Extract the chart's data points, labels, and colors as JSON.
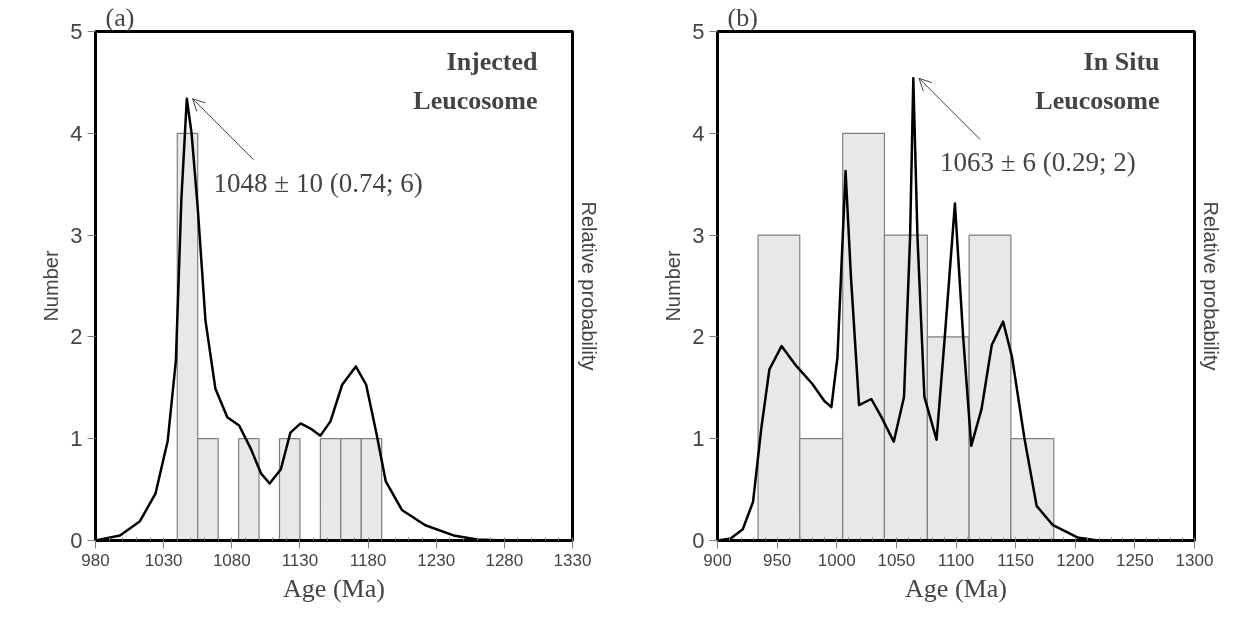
{
  "chart_data": [
    {
      "type": "histogram",
      "title": "Injected\nLeucosome",
      "xlabel": "Age (Ma)",
      "ylabel": "Number",
      "y2label": "Relative probability",
      "bins": [
        1040,
        1055,
        1070,
        1085,
        1100,
        1115,
        1130,
        1145,
        1160,
        1175,
        1190
      ],
      "values": [
        4,
        1,
        0,
        1,
        0,
        1,
        0,
        1,
        1,
        1
      ],
      "color": "#e8e8e8",
      "series": [
        {
          "type": "line",
          "color": "#000000",
          "x": [
            980,
            998,
            1012.6,
            1024,
            1033,
            1039,
            1043,
            1047,
            1050.5,
            1055,
            1060.7,
            1068,
            1076.7,
            1085.4,
            1094,
            1101.4,
            1107.8,
            1116,
            1123,
            1130.5,
            1137.8,
            1145,
            1152.4,
            1161,
            1171,
            1178.6,
            1186,
            1193,
            1204.8,
            1222,
            1242.7,
            1260,
            1280
          ],
          "values": [
            0,
            0.05,
            0.19,
            0.46,
            0.98,
            1.77,
            3.35,
            4.34,
            4.0,
            3.27,
            2.16,
            1.49,
            1.21,
            1.13,
            0.9,
            0.66,
            0.56,
            0.7,
            1.06,
            1.15,
            1.1,
            1.03,
            1.17,
            1.53,
            1.71,
            1.53,
            1.06,
            0.58,
            0.3,
            0.15,
            0.05,
            0.01,
            0
          ]
        }
      ],
      "xlim": [
        980,
        1330
      ],
      "xticks": [
        980,
        1030,
        1080,
        1130,
        1180,
        1230,
        1280,
        1330
      ],
      "ylim": [
        0,
        5
      ],
      "yticks": [
        0,
        1,
        2,
        3,
        4,
        5
      ],
      "grid": false,
      "annotations": [
        "(a)",
        {
          "text": "1048 ± 10 (0.74; 6)",
          "x": 1047,
          "y": 4.34
        }
      ]
    },
    {
      "type": "histogram",
      "title": "In Situ\nLeucosome",
      "xlabel": "Age (Ma)",
      "ylabel": "Number",
      "y2label": "Relative probability",
      "bins": [
        934,
        969,
        1005,
        1040,
        1076,
        1111,
        1146,
        1182
      ],
      "values": [
        3,
        1,
        4,
        3,
        2,
        3,
        1
      ],
      "color": "#e8e8e8",
      "series": [
        {
          "type": "line",
          "color": "#000000",
          "x": [
            900,
            911,
            921.2,
            929.8,
            936.6,
            943.5,
            953.7,
            965.7,
            979.4,
            989.6,
            995.5,
            1000.6,
            1005,
            1007.4,
            1011.9,
            1018.7,
            1029,
            1037.6,
            1047.8,
            1056.4,
            1061.5,
            1064.2,
            1067.7,
            1073.5,
            1083.7,
            1090.6,
            1099.1,
            1106,
            1112.8,
            1121.4,
            1130,
            1139.5,
            1147,
            1157.3,
            1167.6,
            1181.3,
            1201.8,
            1218.9,
            1249.7
          ],
          "values": [
            0,
            0.02,
            0.11,
            0.38,
            1.09,
            1.68,
            1.91,
            1.72,
            1.54,
            1.37,
            1.31,
            1.8,
            2.98,
            3.63,
            2.59,
            1.33,
            1.39,
            1.21,
            0.97,
            1.41,
            2.98,
            4.54,
            2.98,
            1.41,
            0.99,
            2.0,
            3.31,
            2.0,
            0.93,
            1.29,
            1.92,
            2.15,
            1.8,
            1.01,
            0.34,
            0.15,
            0.03,
            0,
            0
          ]
        }
      ],
      "xlim": [
        900,
        1300
      ],
      "xticks": [
        900,
        950,
        1000,
        1050,
        1100,
        1150,
        1200,
        1250,
        1300
      ],
      "ylim": [
        0,
        5
      ],
      "yticks": [
        0,
        1,
        2,
        3,
        4,
        5
      ],
      "grid": false,
      "annotations": [
        "(b)",
        {
          "text": "1063 ± 6 (0.29; 2)",
          "x": 1064.2,
          "y": 4.54
        }
      ]
    }
  ]
}
